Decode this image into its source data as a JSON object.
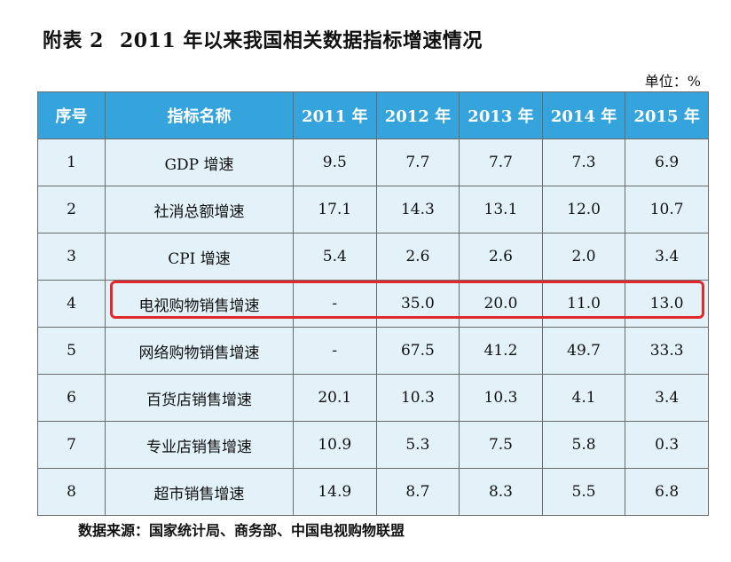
{
  "title": {
    "label": "附表 2",
    "text": "2011 年以来我国相关数据指标增速情况"
  },
  "unit": "单位：%",
  "table": {
    "headers": [
      "序号",
      "指标名称",
      "2011 年",
      "2012 年",
      "2013 年",
      "2014 年",
      "2015 年"
    ],
    "rows": [
      [
        "1",
        "GDP 增速",
        "9.5",
        "7.7",
        "7.7",
        "7.3",
        "6.9"
      ],
      [
        "2",
        "社消总额增速",
        "17.1",
        "14.3",
        "13.1",
        "12.0",
        "10.7"
      ],
      [
        "3",
        "CPI 增速",
        "5.4",
        "2.6",
        "2.6",
        "2.0",
        "3.4"
      ],
      [
        "4",
        "电视购物销售增速",
        "-",
        "35.0",
        "20.0",
        "11.0",
        "13.0"
      ],
      [
        "5",
        "网络购物销售增速",
        "-",
        "67.5",
        "41.2",
        "49.7",
        "33.3"
      ],
      [
        "6",
        "百货店销售增速",
        "20.1",
        "10.3",
        "10.3",
        "4.1",
        "3.4"
      ],
      [
        "7",
        "专业店销售增速",
        "10.9",
        "5.3",
        "7.5",
        "5.8",
        "0.3"
      ],
      [
        "8",
        "超市销售增速",
        "14.9",
        "8.7",
        "8.3",
        "5.5",
        "6.8"
      ]
    ],
    "highlighted_row": 3
  },
  "source": "数据来源：国家统计局、商务部、中国电视购物联盟",
  "colors": {
    "header_bg": "#35a3dc",
    "cell_bg": "#e3f1f9",
    "highlight_border": "#e3282b"
  }
}
